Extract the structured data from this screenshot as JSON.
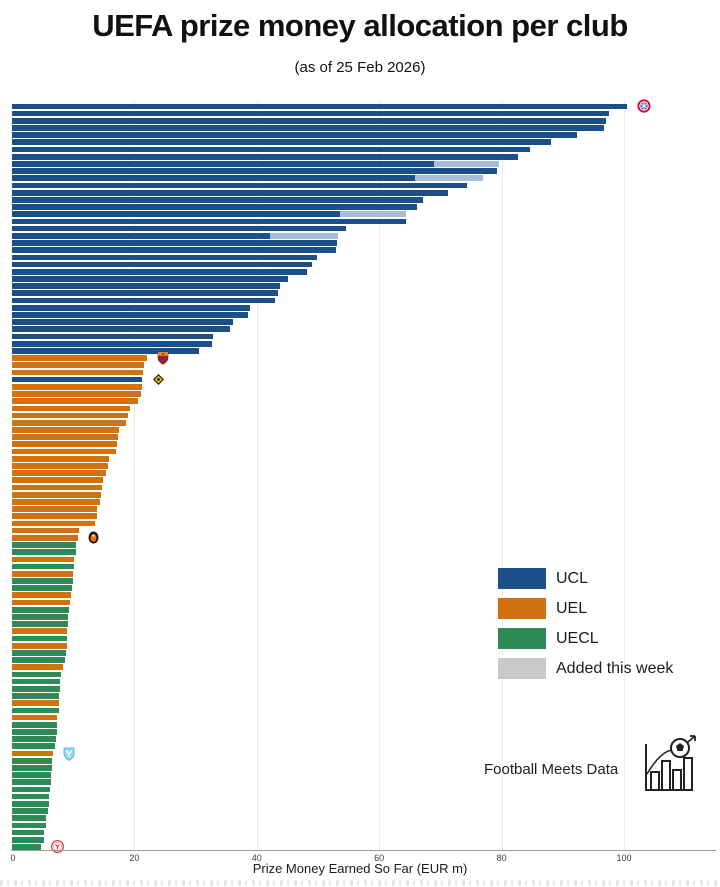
{
  "page": {
    "title": "UEFA prize money allocation per club",
    "subtitle": "(as of 25 Feb 2026)"
  },
  "legend": {
    "items": [
      {
        "label": "UCL",
        "color": "#1b4f8a"
      },
      {
        "label": "UEL",
        "color": "#d1710f"
      },
      {
        "label": "UECL",
        "color": "#2e8b57"
      },
      {
        "label": "Added this week",
        "color": "#c9c9c9"
      }
    ]
  },
  "branding": {
    "name": "Football Meets Data"
  },
  "chart_data": {
    "type": "bar",
    "orientation": "horizontal",
    "title": "UEFA prize money allocation per club",
    "subtitle": "(as of 25 Feb 2026)",
    "xlabel": "Prize Money Earned So Far (EUR m)",
    "unit": "EUR m",
    "x_ticks": [
      0,
      20,
      40,
      60,
      80,
      100
    ],
    "xlim": [
      0,
      115
    ],
    "grid": "vertical-light",
    "legend_position": "center-right",
    "colors": {
      "UCL": "#1b4f8a",
      "UEL": "#d1710f",
      "UECL": "#2e8b57",
      "added_segment_on_ucl": "#a8bdd8",
      "added_legend": "#c9c9c9"
    },
    "bars": [
      {
        "c": "UCL",
        "v": 100.5,
        "crest": "bayern-munich"
      },
      {
        "c": "UCL",
        "v": 97.5
      },
      {
        "c": "UCL",
        "v": 97.0
      },
      {
        "c": "UCL",
        "v": 96.7
      },
      {
        "c": "UCL",
        "v": 92.3
      },
      {
        "c": "UCL",
        "v": 88.0
      },
      {
        "c": "UCL",
        "v": 84.6
      },
      {
        "c": "UCL",
        "v": 82.6
      },
      {
        "c": "UCL",
        "v": 79.5,
        "a": 10.6
      },
      {
        "c": "UCL",
        "v": 79.2
      },
      {
        "c": "UCL",
        "v": 76.9,
        "a": 11.0
      },
      {
        "c": "UCL",
        "v": 74.3
      },
      {
        "c": "UCL",
        "v": 71.3
      },
      {
        "c": "UCL",
        "v": 67.2
      },
      {
        "c": "UCL",
        "v": 66.1
      },
      {
        "c": "UCL",
        "v": 64.4,
        "a": 10.8
      },
      {
        "c": "UCL",
        "v": 64.3
      },
      {
        "c": "UCL",
        "v": 54.6
      },
      {
        "c": "UCL",
        "v": 53.3,
        "a": 11.2
      },
      {
        "c": "UCL",
        "v": 53.1
      },
      {
        "c": "UCL",
        "v": 53.0
      },
      {
        "c": "UCL",
        "v": 49.8
      },
      {
        "c": "UCL",
        "v": 49.0
      },
      {
        "c": "UCL",
        "v": 48.2
      },
      {
        "c": "UCL",
        "v": 45.1
      },
      {
        "c": "UCL",
        "v": 43.8
      },
      {
        "c": "UCL",
        "v": 43.4
      },
      {
        "c": "UCL",
        "v": 43.0
      },
      {
        "c": "UCL",
        "v": 38.9
      },
      {
        "c": "UCL",
        "v": 38.5
      },
      {
        "c": "UCL",
        "v": 36.1
      },
      {
        "c": "UCL",
        "v": 35.6
      },
      {
        "c": "UCL",
        "v": 32.8
      },
      {
        "c": "UCL",
        "v": 32.6
      },
      {
        "c": "UCL",
        "v": 30.5
      },
      {
        "c": "UEL",
        "v": 22.1,
        "crest": "as-roma"
      },
      {
        "c": "UEL",
        "v": 21.5
      },
      {
        "c": "UEL",
        "v": 21.4
      },
      {
        "c": "UCL",
        "v": 21.3,
        "crest": "yellow-black-diamond"
      },
      {
        "c": "UEL",
        "v": 21.2
      },
      {
        "c": "UEL",
        "v": 21.0
      },
      {
        "c": "UEL",
        "v": 20.5
      },
      {
        "c": "UEL",
        "v": 19.2
      },
      {
        "c": "UEL",
        "v": 18.9
      },
      {
        "c": "UEL",
        "v": 18.7
      },
      {
        "c": "UEL",
        "v": 17.5
      },
      {
        "c": "UEL",
        "v": 17.3
      },
      {
        "c": "UEL",
        "v": 17.2
      },
      {
        "c": "UEL",
        "v": 17.0
      },
      {
        "c": "UEL",
        "v": 15.9
      },
      {
        "c": "UEL",
        "v": 15.6
      },
      {
        "c": "UEL",
        "v": 15.4
      },
      {
        "c": "UEL",
        "v": 14.8
      },
      {
        "c": "UEL",
        "v": 14.7
      },
      {
        "c": "UEL",
        "v": 14.6
      },
      {
        "c": "UEL",
        "v": 14.3
      },
      {
        "c": "UEL",
        "v": 13.9
      },
      {
        "c": "UEL",
        "v": 13.8
      },
      {
        "c": "UEL",
        "v": 13.6
      },
      {
        "c": "UEL",
        "v": 11.0
      },
      {
        "c": "UEL",
        "v": 10.7,
        "crest": "shakhtar-donetsk"
      },
      {
        "c": "UECL",
        "v": 10.5
      },
      {
        "c": "UECL",
        "v": 10.4
      },
      {
        "c": "UEL",
        "v": 10.2
      },
      {
        "c": "UECL",
        "v": 10.1
      },
      {
        "c": "UEL",
        "v": 10.0
      },
      {
        "c": "UECL",
        "v": 9.9
      },
      {
        "c": "UECL",
        "v": 9.8
      },
      {
        "c": "UEL",
        "v": 9.7
      },
      {
        "c": "UEL",
        "v": 9.5
      },
      {
        "c": "UECL",
        "v": 9.3
      },
      {
        "c": "UECL",
        "v": 9.2
      },
      {
        "c": "UECL",
        "v": 9.1
      },
      {
        "c": "UEL",
        "v": 9.0
      },
      {
        "c": "UECL",
        "v": 9.0
      },
      {
        "c": "UEL",
        "v": 8.9
      },
      {
        "c": "UECL",
        "v": 8.8
      },
      {
        "c": "UECL",
        "v": 8.6
      },
      {
        "c": "UEL",
        "v": 8.4
      },
      {
        "c": "UECL",
        "v": 8.0
      },
      {
        "c": "UECL",
        "v": 7.9
      },
      {
        "c": "UECL",
        "v": 7.8
      },
      {
        "c": "UECL",
        "v": 7.7
      },
      {
        "c": "UEL",
        "v": 7.6
      },
      {
        "c": "UECL",
        "v": 7.6
      },
      {
        "c": "UEL",
        "v": 7.4
      },
      {
        "c": "UECL",
        "v": 7.3
      },
      {
        "c": "UECL",
        "v": 7.3
      },
      {
        "c": "UECL",
        "v": 7.2
      },
      {
        "c": "UECL",
        "v": 7.0
      },
      {
        "c": "UEL",
        "v": 6.7,
        "crest": "light-blue-shield"
      },
      {
        "c": "UECL",
        "v": 6.6
      },
      {
        "c": "UECL",
        "v": 6.5
      },
      {
        "c": "UECL",
        "v": 6.4
      },
      {
        "c": "UECL",
        "v": 6.3
      },
      {
        "c": "UECL",
        "v": 6.2
      },
      {
        "c": "UECL",
        "v": 6.1
      },
      {
        "c": "UECL",
        "v": 6.0
      },
      {
        "c": "UECL",
        "v": 5.9
      },
      {
        "c": "UECL",
        "v": 5.6
      },
      {
        "c": "UECL",
        "v": 5.5
      },
      {
        "c": "UECL",
        "v": 5.3
      },
      {
        "c": "UECL",
        "v": 5.2
      },
      {
        "c": "UECL",
        "v": 4.7,
        "crest": "red-white-roundel"
      }
    ]
  }
}
